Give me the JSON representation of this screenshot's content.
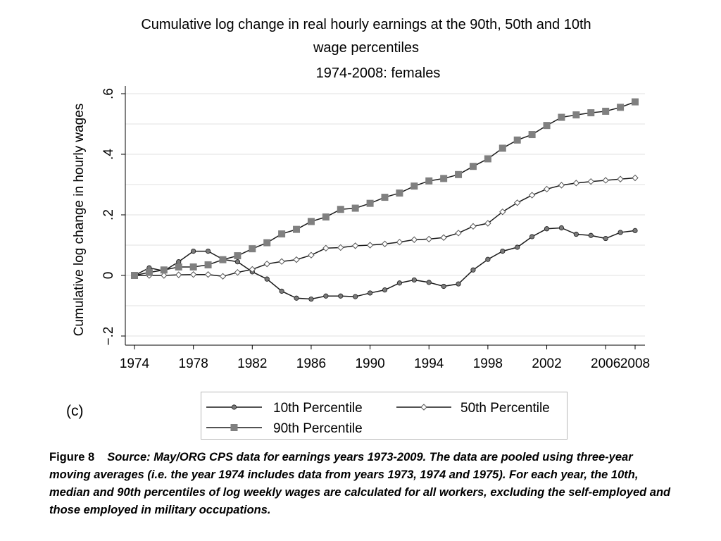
{
  "chart": {
    "title_line1": "Cumulative log change in real hourly earnings at the 90th, 50th and 10th",
    "title_line2": "wage percentiles",
    "subtitle": "1974-2008: females",
    "panel_label": "(c)"
  },
  "caption": {
    "figure_number": "Figure 8",
    "text": "Source: May/ORG CPS data for earnings years 1973-2009. The data are pooled using three-year moving averages (i.e. the year 1974 includes data from years 1973, 1974 and 1975). For each year, the 10th, median and 90th percentiles of log weekly wages are calculated for all workers, excluding the self-employed and those employed in military occupations."
  },
  "colors": {
    "line": "#1a1a1a",
    "p10_marker": "#7a7a7a",
    "p50_marker_fill": "#ffffff",
    "p90_marker": "#808080",
    "gridline": "#e2e2e2",
    "axis": "#000000"
  },
  "chart_data": {
    "type": "line",
    "title": "Cumulative log change in real hourly earnings at the 90th, 50th and 10th wage percentiles",
    "subtitle": "1974-2008: females",
    "xlabel": "",
    "ylabel": "Cumulative log change in  hourly wages",
    "x": [
      1974,
      1975,
      1976,
      1977,
      1978,
      1979,
      1980,
      1981,
      1982,
      1983,
      1984,
      1985,
      1986,
      1987,
      1988,
      1989,
      1990,
      1991,
      1992,
      1993,
      1994,
      1995,
      1996,
      1997,
      1998,
      1999,
      2000,
      2001,
      2002,
      2003,
      2004,
      2005,
      2006,
      2007,
      2008
    ],
    "xticks": [
      1974,
      1978,
      1982,
      1986,
      1990,
      1994,
      1998,
      2002,
      2006,
      2008
    ],
    "xtick_labels": [
      "1974",
      "1978",
      "1982",
      "1986",
      "1990",
      "1994",
      "1998",
      "2002",
      "2006",
      "2008"
    ],
    "yticks": [
      -0.2,
      0,
      0.2,
      0.4,
      0.6
    ],
    "ytick_labels": [
      "−.2",
      "0",
      ".2",
      ".4",
      ".6"
    ],
    "xlim": [
      1974,
      2008
    ],
    "ylim": [
      -0.23,
      0.62
    ],
    "grid": true,
    "legend_position": "bottom",
    "series": [
      {
        "name": "10th Percentile",
        "marker": "circle",
        "values": [
          0.0,
          0.025,
          0.015,
          0.045,
          0.08,
          0.08,
          0.053,
          0.045,
          0.012,
          -0.012,
          -0.052,
          -0.075,
          -0.078,
          -0.068,
          -0.068,
          -0.07,
          -0.058,
          -0.048,
          -0.025,
          -0.015,
          -0.023,
          -0.036,
          -0.028,
          0.018,
          0.053,
          0.08,
          0.093,
          0.128,
          0.154,
          0.157,
          0.136,
          0.132,
          0.122,
          0.142,
          0.148
        ]
      },
      {
        "name": "50th Percentile",
        "marker": "diamond",
        "values": [
          0.0,
          0.0,
          0.0,
          0.002,
          0.003,
          0.003,
          -0.003,
          0.01,
          0.02,
          0.038,
          0.046,
          0.052,
          0.067,
          0.09,
          0.092,
          0.098,
          0.1,
          0.104,
          0.11,
          0.118,
          0.12,
          0.125,
          0.14,
          0.162,
          0.172,
          0.21,
          0.24,
          0.265,
          0.285,
          0.298,
          0.305,
          0.31,
          0.314,
          0.318,
          0.322
        ]
      },
      {
        "name": "90th Percentile",
        "marker": "square",
        "values": [
          0.0,
          0.01,
          0.018,
          0.028,
          0.028,
          0.035,
          0.052,
          0.065,
          0.088,
          0.108,
          0.137,
          0.152,
          0.178,
          0.193,
          0.218,
          0.222,
          0.238,
          0.258,
          0.272,
          0.295,
          0.312,
          0.32,
          0.333,
          0.36,
          0.385,
          0.42,
          0.447,
          0.465,
          0.495,
          0.522,
          0.53,
          0.537,
          0.542,
          0.555,
          0.573
        ]
      }
    ]
  }
}
